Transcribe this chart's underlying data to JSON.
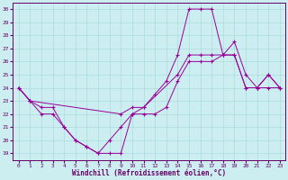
{
  "xlabel": "Windchill (Refroidissement éolien,°C)",
  "bg_color": "#cceef0",
  "line_color": "#990099",
  "grid_color": "#aadddd",
  "xlim": [
    -0.5,
    23.5
  ],
  "ylim": [
    18.5,
    30.5
  ],
  "yticks": [
    19,
    20,
    21,
    22,
    23,
    24,
    25,
    26,
    27,
    28,
    29,
    30
  ],
  "xticks": [
    0,
    1,
    2,
    3,
    4,
    5,
    6,
    7,
    8,
    9,
    10,
    11,
    12,
    13,
    14,
    15,
    16,
    17,
    18,
    19,
    20,
    21,
    22,
    23
  ],
  "line1_x": [
    0,
    1,
    2,
    3,
    4,
    5,
    6,
    7,
    8,
    9,
    10,
    11,
    12,
    13,
    14,
    15,
    16,
    17,
    18,
    19,
    20,
    21,
    22,
    23
  ],
  "line1_y": [
    24,
    23,
    22,
    22,
    21,
    20,
    19.5,
    19,
    19,
    19,
    22,
    22,
    22,
    22.5,
    24.5,
    26,
    26,
    26,
    26.5,
    26.5,
    24,
    24,
    24,
    24
  ],
  "line2_x": [
    0,
    1,
    2,
    3,
    4,
    5,
    6,
    7,
    8,
    9,
    10,
    11,
    12,
    13,
    14,
    15,
    16,
    17,
    18,
    19,
    20,
    21,
    22,
    23
  ],
  "line2_y": [
    24,
    23,
    22.5,
    22.5,
    21,
    20,
    19.5,
    19,
    20,
    21,
    22,
    22.5,
    23.5,
    24.5,
    26.5,
    30,
    30,
    30,
    26.5,
    27.5,
    25,
    24,
    25,
    24
  ],
  "line3_x": [
    0,
    1,
    9,
    10,
    11,
    14,
    15,
    16,
    17,
    18,
    19,
    20,
    21,
    22,
    23
  ],
  "line3_y": [
    24,
    23,
    22,
    22.5,
    22.5,
    25,
    26.5,
    26.5,
    26.5,
    26.5,
    26.5,
    24,
    24,
    25,
    24
  ]
}
